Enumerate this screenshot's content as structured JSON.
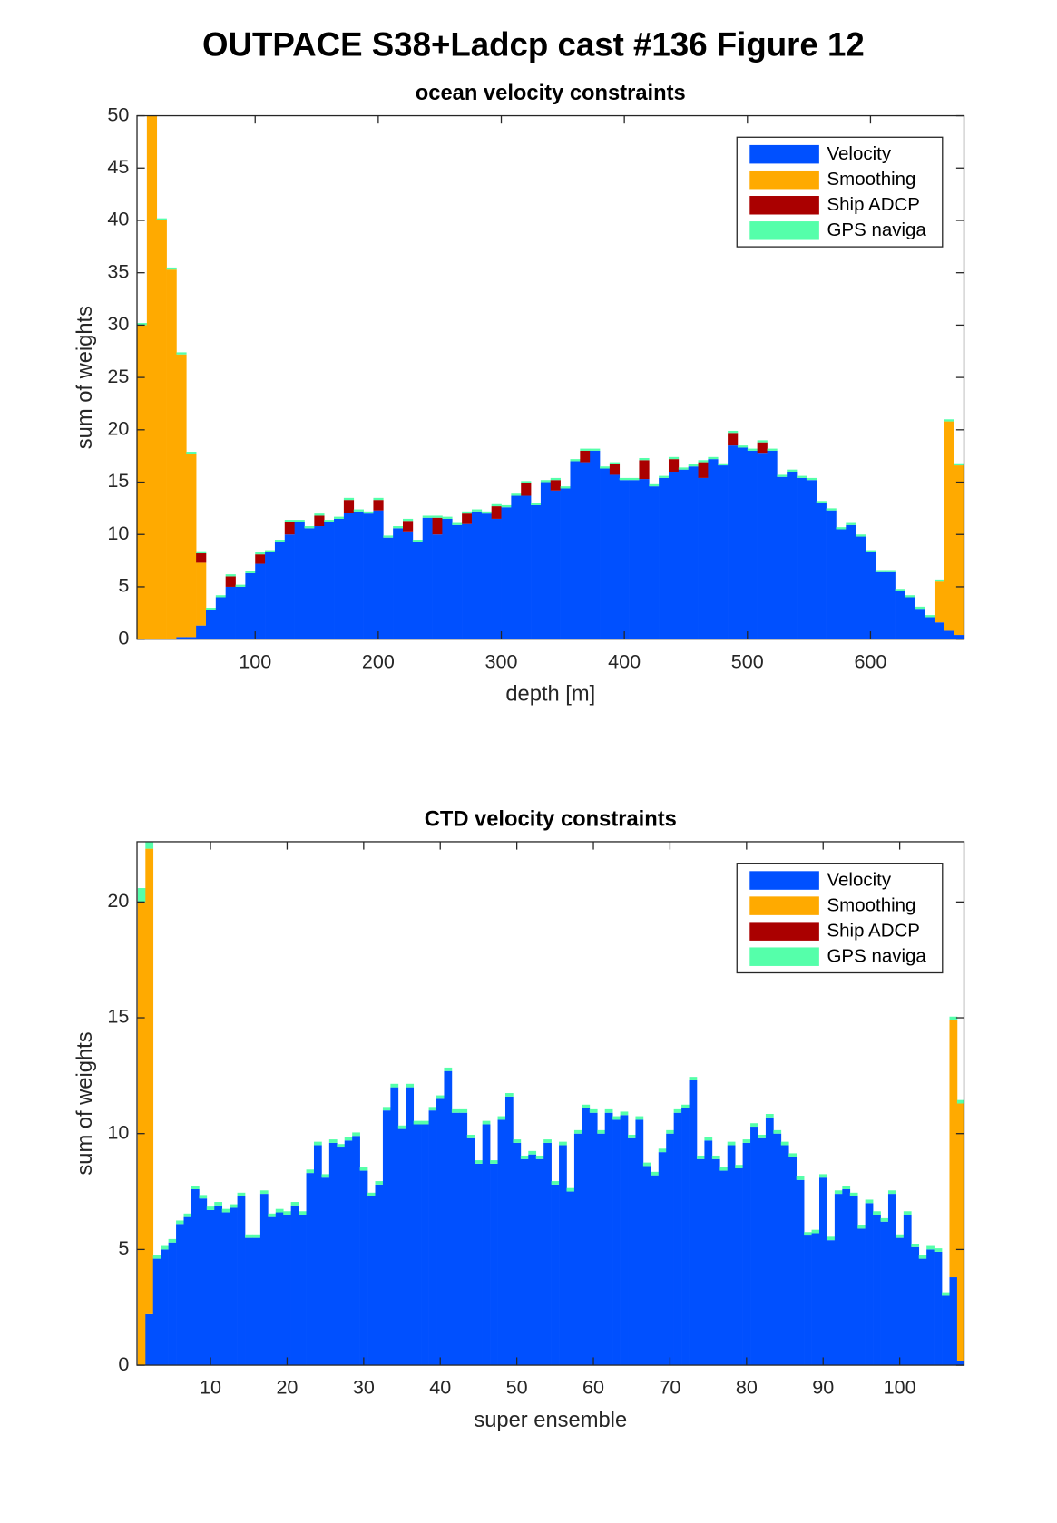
{
  "title": "OUTPACE S38+Ladcp cast #136  Figure 12",
  "chart_data": [
    {
      "type": "stacked_bar",
      "title": "ocean velocity constraints",
      "xlabel": "depth [m]",
      "ylabel": "sum of weights",
      "x": [
        8,
        16,
        24,
        32,
        40,
        48,
        56,
        64,
        72,
        80,
        88,
        96,
        104,
        112,
        120,
        128,
        136,
        144,
        152,
        160,
        168,
        176,
        184,
        192,
        200,
        208,
        216,
        224,
        232,
        240,
        248,
        256,
        264,
        272,
        280,
        288,
        296,
        304,
        312,
        320,
        328,
        336,
        344,
        352,
        360,
        368,
        376,
        384,
        392,
        400,
        408,
        416,
        424,
        432,
        440,
        448,
        456,
        464,
        472,
        480,
        488,
        496,
        504,
        512,
        520,
        528,
        536,
        544,
        552,
        560,
        568,
        576,
        584,
        592,
        600,
        608,
        616,
        624,
        632,
        640,
        648,
        656,
        664,
        672
      ],
      "xlim": [
        4,
        676
      ],
      "xticks": [
        100,
        200,
        300,
        400,
        500,
        600
      ],
      "ylim": [
        0,
        50
      ],
      "yticks": [
        0,
        5,
        10,
        15,
        20,
        25,
        30,
        35,
        40,
        45,
        50
      ],
      "legend": "upper right",
      "series": [
        {
          "name": "Velocity",
          "color": "#0050ff",
          "values": [
            0,
            0,
            0,
            0,
            0.2,
            0.2,
            1.3,
            2.8,
            4.0,
            5.0,
            5.0,
            6.3,
            7.2,
            8.3,
            9.3,
            10.0,
            11.2,
            10.6,
            10.8,
            11.2,
            11.5,
            12.1,
            12.2,
            12.0,
            12.3,
            9.7,
            10.6,
            10.3,
            9.3,
            11.6,
            10.0,
            11.5,
            10.9,
            11.0,
            12.2,
            12.0,
            11.5,
            12.6,
            13.7,
            13.7,
            12.8,
            15.0,
            14.2,
            14.4,
            17.0,
            16.9,
            18.0,
            16.3,
            15.7,
            15.2,
            15.2,
            15.3,
            14.6,
            15.4,
            16.0,
            16.2,
            16.5,
            15.4,
            17.2,
            16.6,
            18.5,
            18.3,
            18.0,
            17.8,
            18.0,
            15.5,
            16.0,
            15.4,
            15.2,
            13.0,
            12.3,
            10.5,
            10.9,
            9.8,
            8.3,
            6.4,
            6.4,
            4.6,
            4.0,
            2.9,
            2.1,
            1.6,
            0.8,
            0.4
          ]
        },
        {
          "name": "Smoothing",
          "color": "#ffaa00",
          "values": [
            30,
            50,
            40,
            35.3,
            27.0,
            17.5,
            6.0,
            0,
            0,
            0,
            0,
            0,
            0,
            0,
            0,
            0,
            0,
            0,
            0,
            0,
            0,
            0,
            0,
            0,
            0,
            0,
            0,
            0,
            0,
            0,
            0,
            0,
            0,
            0,
            0,
            0,
            0,
            0,
            0,
            0,
            0,
            0,
            0,
            0,
            0,
            0,
            0,
            0,
            0,
            0,
            0,
            0,
            0,
            0,
            0,
            0,
            0,
            0,
            0,
            0,
            0,
            0,
            0,
            0,
            0,
            0,
            0,
            0,
            0,
            0,
            0,
            0,
            0,
            0,
            0,
            0,
            0,
            0,
            0,
            0,
            0,
            3.9,
            20.0,
            16.2
          ]
        },
        {
          "name": "Ship ADCP",
          "color": "#aa0000",
          "values": [
            0,
            0,
            0,
            0,
            0,
            0,
            0.9,
            0,
            0,
            1.0,
            0,
            0,
            0.9,
            0,
            0,
            1.2,
            0,
            0,
            1.0,
            0,
            0,
            1.2,
            0,
            0,
            1.0,
            0,
            0,
            1.0,
            0,
            0,
            1.6,
            0,
            0,
            1.0,
            0,
            0,
            1.2,
            0,
            0,
            1.2,
            0,
            0,
            1.0,
            0,
            0,
            1.1,
            0,
            0,
            1.0,
            0,
            0,
            1.8,
            0,
            0,
            1.2,
            0,
            0,
            1.5,
            0,
            0,
            1.2,
            0,
            0,
            1.0,
            0,
            0,
            0,
            0,
            0,
            0,
            0,
            0,
            0,
            0,
            0,
            0,
            0,
            0,
            0,
            0,
            0,
            0,
            0,
            0
          ]
        },
        {
          "name": "GPS naviga",
          "color": "#55ffaa",
          "values": [
            0.2,
            0.2,
            0.2,
            0.2,
            0.2,
            0.2,
            0.2,
            0.2,
            0.2,
            0.2,
            0.2,
            0.2,
            0.2,
            0.2,
            0.2,
            0.2,
            0.2,
            0.2,
            0.2,
            0.2,
            0.2,
            0.2,
            0.2,
            0.2,
            0.2,
            0.2,
            0.2,
            0.2,
            0.2,
            0.2,
            0.2,
            0.2,
            0.2,
            0.2,
            0.2,
            0.2,
            0.2,
            0.2,
            0.2,
            0.2,
            0.2,
            0.2,
            0.2,
            0.2,
            0.2,
            0.2,
            0.2,
            0.2,
            0.2,
            0.2,
            0.2,
            0.2,
            0.2,
            0.2,
            0.2,
            0.2,
            0.2,
            0.2,
            0.2,
            0.2,
            0.2,
            0.2,
            0.2,
            0.2,
            0.2,
            0.2,
            0.2,
            0.2,
            0.2,
            0.2,
            0.2,
            0.2,
            0.2,
            0.2,
            0.2,
            0.2,
            0.2,
            0.2,
            0.2,
            0.2,
            0.2,
            0.2,
            0.2,
            0.2
          ]
        }
      ]
    },
    {
      "type": "stacked_bar",
      "title": "CTD velocity constraints",
      "xlabel": "super ensemble",
      "ylabel": "sum of weights",
      "x": [
        1,
        2,
        3,
        4,
        5,
        6,
        7,
        8,
        9,
        10,
        11,
        12,
        13,
        14,
        15,
        16,
        17,
        18,
        19,
        20,
        21,
        22,
        23,
        24,
        25,
        26,
        27,
        28,
        29,
        30,
        31,
        32,
        33,
        34,
        35,
        36,
        37,
        38,
        39,
        40,
        41,
        42,
        43,
        44,
        45,
        46,
        47,
        48,
        49,
        50,
        51,
        52,
        53,
        54,
        55,
        56,
        57,
        58,
        59,
        60,
        61,
        62,
        63,
        64,
        65,
        66,
        67,
        68,
        69,
        70,
        71,
        72,
        73,
        74,
        75,
        76,
        77,
        78,
        79,
        80,
        81,
        82,
        83,
        84,
        85,
        86,
        87,
        88,
        89,
        90,
        91,
        92,
        93,
        94,
        95,
        96,
        97,
        98,
        99,
        100,
        101,
        102,
        103,
        104,
        105,
        106,
        107,
        108
      ],
      "xlim": [
        0.4,
        108.4
      ],
      "xticks": [
        10,
        20,
        30,
        40,
        50,
        60,
        70,
        80,
        90,
        100
      ],
      "ylim": [
        0,
        22.6
      ],
      "yticks": [
        0,
        5,
        10,
        15,
        20
      ],
      "legend": "upper right",
      "series": [
        {
          "name": "Velocity",
          "color": "#0050ff",
          "values": [
            0,
            2.2,
            4.6,
            5.0,
            5.3,
            6.1,
            6.4,
            7.6,
            7.2,
            6.7,
            6.9,
            6.6,
            6.8,
            7.3,
            5.5,
            5.5,
            7.4,
            6.4,
            6.6,
            6.5,
            6.9,
            6.5,
            8.3,
            9.5,
            8.1,
            9.6,
            9.4,
            9.7,
            9.9,
            8.4,
            7.3,
            7.8,
            11.0,
            12.0,
            10.2,
            12.0,
            10.4,
            10.4,
            11.0,
            11.5,
            12.7,
            10.9,
            10.9,
            9.8,
            8.7,
            10.4,
            8.7,
            10.6,
            11.6,
            9.6,
            8.9,
            9.1,
            8.9,
            9.6,
            7.8,
            9.5,
            7.5,
            10.0,
            11.1,
            10.9,
            10.0,
            10.9,
            10.6,
            10.8,
            9.8,
            10.6,
            8.6,
            8.2,
            9.2,
            10.0,
            10.9,
            11.1,
            12.3,
            8.9,
            9.7,
            8.9,
            8.4,
            9.5,
            8.5,
            9.6,
            10.3,
            9.8,
            10.7,
            10.0,
            9.5,
            9.0,
            8.0,
            5.6,
            5.7,
            8.1,
            5.4,
            7.4,
            7.6,
            7.3,
            5.9,
            7.0,
            6.5,
            6.2,
            7.4,
            5.5,
            6.5,
            5.1,
            4.6,
            5.0,
            4.9,
            3.0,
            3.8,
            0.2
          ]
        },
        {
          "name": "Smoothing",
          "color": "#ffaa00",
          "values": [
            20.0,
            20.1,
            0,
            0,
            0,
            0,
            0,
            0,
            0,
            0,
            0,
            0,
            0,
            0,
            0,
            0,
            0,
            0,
            0,
            0,
            0,
            0,
            0,
            0,
            0,
            0,
            0,
            0,
            0,
            0,
            0,
            0,
            0,
            0,
            0,
            0,
            0,
            0,
            0,
            0,
            0,
            0,
            0,
            0,
            0,
            0,
            0,
            0,
            0,
            0,
            0,
            0,
            0,
            0,
            0,
            0,
            0,
            0,
            0,
            0,
            0,
            0,
            0,
            0,
            0,
            0,
            0,
            0,
            0,
            0,
            0,
            0,
            0,
            0,
            0,
            0,
            0,
            0,
            0,
            0,
            0,
            0,
            0,
            0,
            0,
            0,
            0,
            0,
            0,
            0,
            0,
            0,
            0,
            0,
            0,
            0,
            0,
            0,
            0,
            0,
            0,
            0,
            0,
            0,
            0,
            0,
            11.1,
            11.1
          ]
        },
        {
          "name": "Ship ADCP",
          "color": "#aa0000",
          "values": [
            0,
            0,
            0,
            0,
            0,
            0,
            0,
            0,
            0,
            0,
            0,
            0,
            0,
            0,
            0,
            0,
            0,
            0,
            0,
            0,
            0,
            0,
            0,
            0,
            0,
            0,
            0,
            0,
            0,
            0,
            0,
            0,
            0,
            0,
            0,
            0,
            0,
            0,
            0,
            0,
            0,
            0,
            0,
            0,
            0,
            0,
            0,
            0,
            0,
            0,
            0,
            0,
            0,
            0,
            0,
            0,
            0,
            0,
            0,
            0,
            0,
            0,
            0,
            0,
            0,
            0,
            0,
            0,
            0,
            0,
            0,
            0,
            0,
            0,
            0,
            0,
            0,
            0,
            0,
            0,
            0,
            0,
            0,
            0,
            0,
            0,
            0,
            0,
            0,
            0,
            0,
            0,
            0,
            0,
            0,
            0,
            0,
            0,
            0,
            0,
            0,
            0,
            0,
            0,
            0,
            0,
            0,
            0
          ]
        },
        {
          "name": "GPS naviga",
          "color": "#55ffaa",
          "values": [
            0.6,
            0.3,
            0.15,
            0.15,
            0.15,
            0.15,
            0.15,
            0.15,
            0.15,
            0.15,
            0.15,
            0.15,
            0.15,
            0.15,
            0.15,
            0.15,
            0.15,
            0.15,
            0.15,
            0.15,
            0.15,
            0.15,
            0.15,
            0.15,
            0.15,
            0.15,
            0.15,
            0.15,
            0.15,
            0.15,
            0.15,
            0.15,
            0.15,
            0.15,
            0.15,
            0.15,
            0.15,
            0.15,
            0.15,
            0.15,
            0.15,
            0.15,
            0.15,
            0.15,
            0.15,
            0.15,
            0.15,
            0.15,
            0.15,
            0.15,
            0.15,
            0.15,
            0.15,
            0.15,
            0.15,
            0.15,
            0.15,
            0.15,
            0.15,
            0.15,
            0.15,
            0.15,
            0.15,
            0.15,
            0.15,
            0.15,
            0.15,
            0.15,
            0.15,
            0.15,
            0.15,
            0.15,
            0.15,
            0.15,
            0.15,
            0.15,
            0.15,
            0.15,
            0.15,
            0.15,
            0.15,
            0.15,
            0.15,
            0.15,
            0.15,
            0.15,
            0.15,
            0.15,
            0.15,
            0.15,
            0.15,
            0.15,
            0.15,
            0.15,
            0.15,
            0.15,
            0.15,
            0.15,
            0.15,
            0.15,
            0.15,
            0.15,
            0.15,
            0.15,
            0.15,
            0.15,
            0.15,
            0.15
          ]
        }
      ]
    }
  ]
}
